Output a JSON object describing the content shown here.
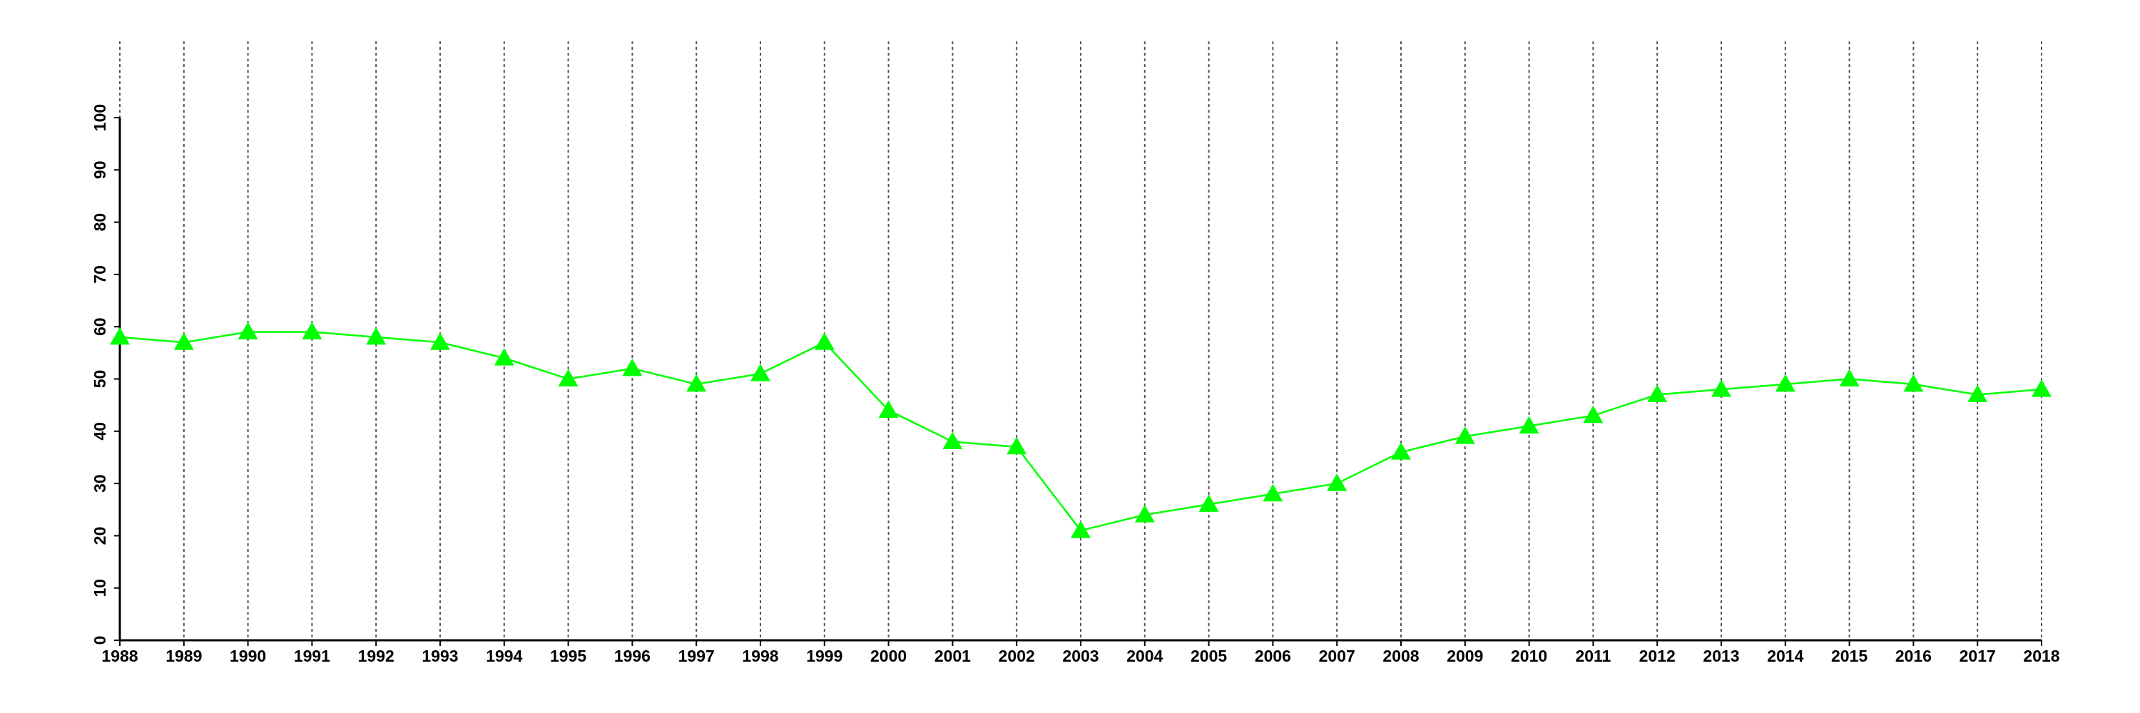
{
  "chart_data": {
    "type": "line",
    "x": [
      1988,
      1989,
      1990,
      1991,
      1992,
      1993,
      1994,
      1995,
      1996,
      1997,
      1998,
      1999,
      2000,
      2001,
      2002,
      2003,
      2004,
      2005,
      2006,
      2007,
      2008,
      2009,
      2010,
      2011,
      2012,
      2013,
      2014,
      2015,
      2016,
      2017,
      2018
    ],
    "series": [
      {
        "color": "#00ff00",
        "values": [
          58,
          57,
          59,
          59,
          58,
          57,
          54,
          50,
          52,
          49,
          51,
          57,
          44,
          38,
          37,
          21,
          24,
          26,
          28,
          30,
          36,
          39,
          41,
          43,
          47,
          48,
          49,
          50,
          49,
          47,
          48
        ]
      }
    ],
    "xlim": [
      1988,
      2018
    ],
    "xticks": [
      1988,
      1989,
      1990,
      1991,
      1992,
      1993,
      1994,
      1995,
      1996,
      1997,
      1998,
      1999,
      2000,
      2001,
      2002,
      2003,
      2004,
      2005,
      2006,
      2007,
      2008,
      2009,
      2010,
      2011,
      2012,
      2013,
      2014,
      2015,
      2016,
      2017,
      2018
    ],
    "ylim": [
      0,
      100
    ],
    "yticks": [
      0,
      10,
      20,
      30,
      40,
      50,
      60,
      70,
      80,
      90,
      100
    ],
    "grid": "x"
  }
}
